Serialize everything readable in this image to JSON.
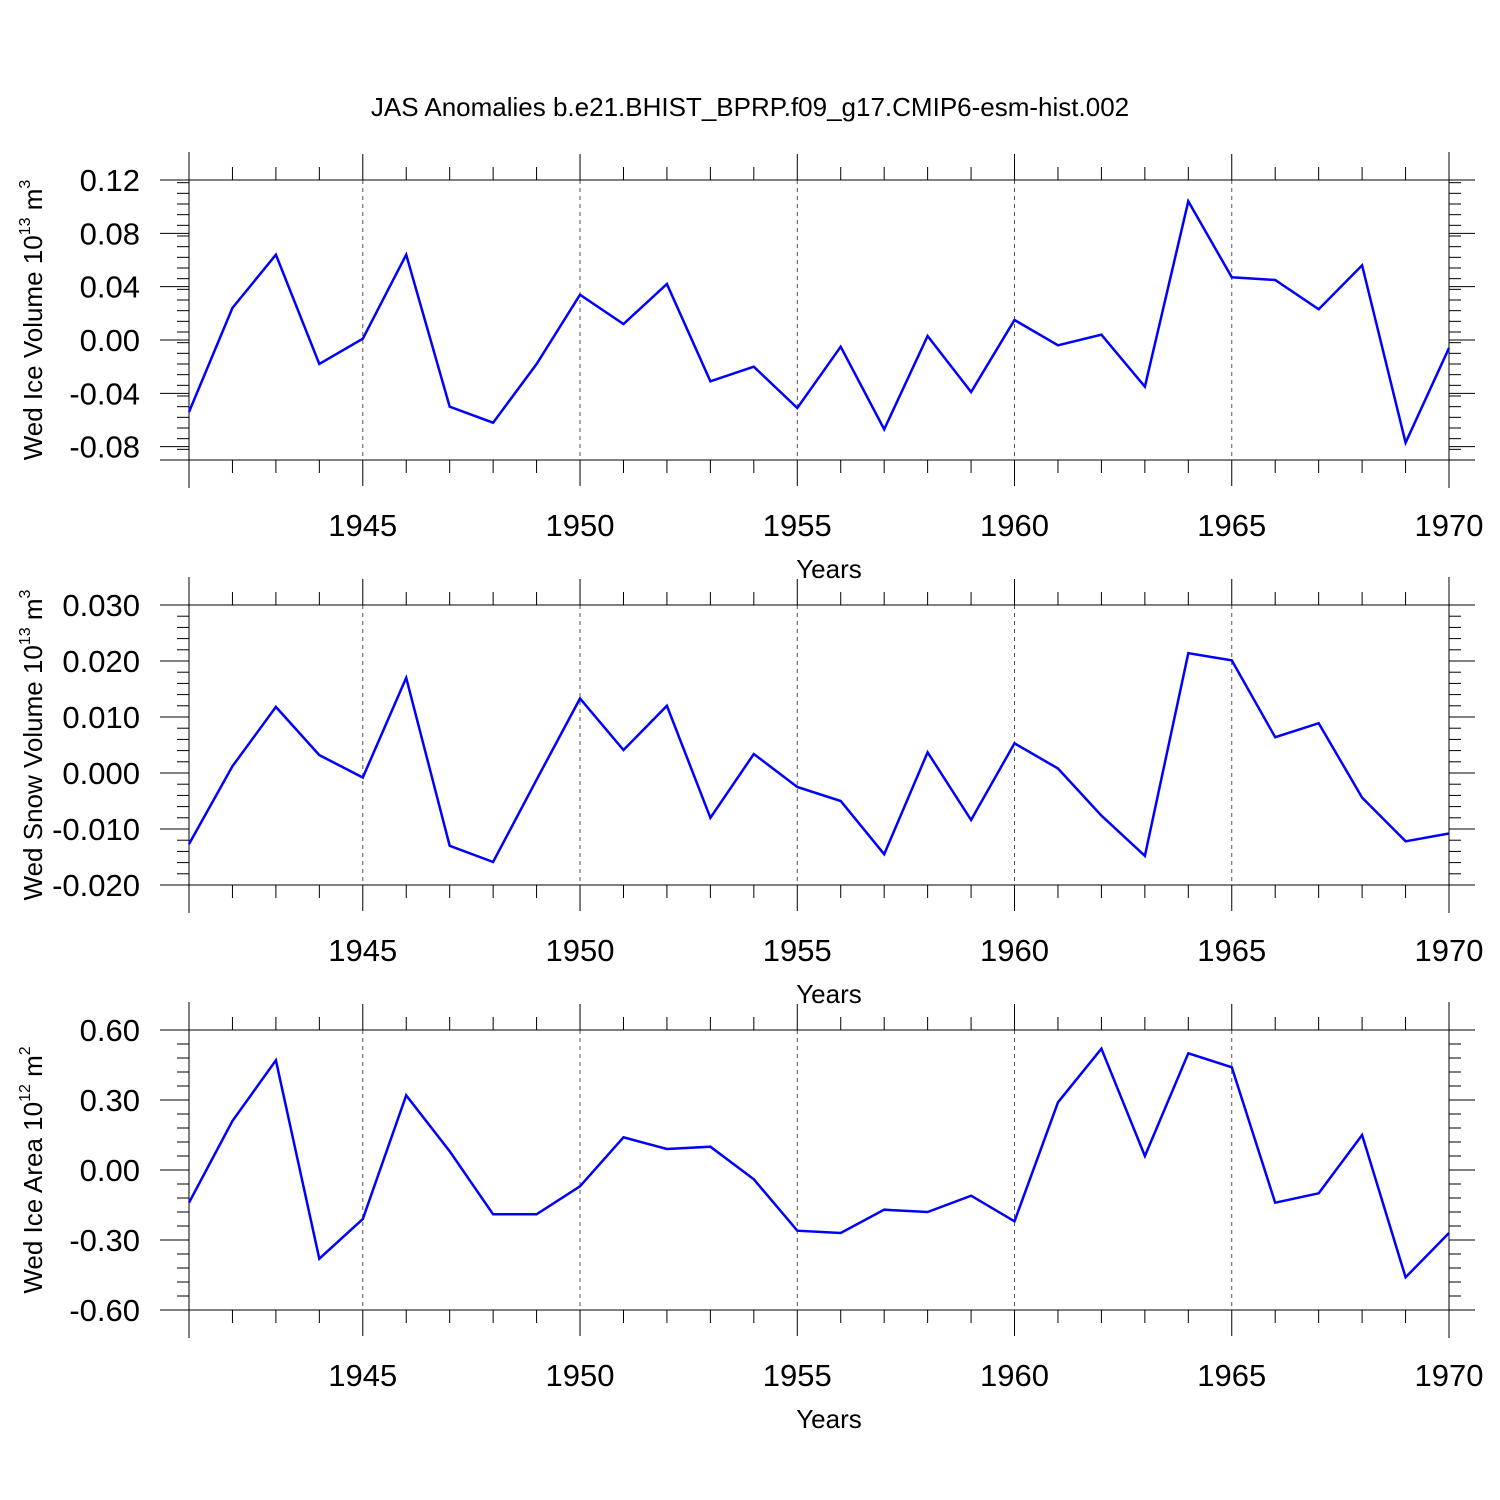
{
  "title": "JAS Anomalies b.e21.BHIST_BPRP.f09_g17.CMIP6-esm-hist.002",
  "line_color": "#0000ff",
  "chart_data": [
    {
      "type": "line",
      "series": [
        {
          "x": [
            1941,
            1942,
            1943,
            1944,
            1945,
            1946,
            1947,
            1948,
            1949,
            1950,
            1951,
            1952,
            1953,
            1954,
            1955,
            1956,
            1957,
            1958,
            1959,
            1960,
            1961,
            1962,
            1963,
            1964,
            1965,
            1966,
            1967,
            1968,
            1969,
            1970
          ],
          "values": [
            -0.054,
            0.024,
            0.064,
            -0.018,
            0.001,
            0.064,
            -0.05,
            -0.062,
            -0.018,
            0.034,
            0.012,
            0.042,
            -0.031,
            -0.02,
            -0.051,
            -0.005,
            -0.067,
            0.003,
            -0.039,
            0.015,
            -0.004,
            0.004,
            -0.035,
            0.104,
            0.047,
            0.045,
            0.023,
            0.056,
            -0.077,
            -0.006
          ]
        }
      ],
      "xlabel": "Years",
      "ylabel": {
        "main": "Wed Ice Volume 10",
        "sup1": "13",
        "mid": " m",
        "sup2": "3"
      },
      "xlim": [
        1941,
        1970
      ],
      "ylim": [
        -0.09,
        0.12
      ],
      "xticks": [
        1945,
        1950,
        1955,
        1960,
        1965,
        1970
      ],
      "yticks": [
        0.12,
        0.08,
        0.04,
        0.0,
        -0.04,
        -0.08
      ],
      "ytick_labels": [
        "0.12",
        "0.08",
        "0.04",
        "0.00",
        "-0.04",
        "-0.08"
      ],
      "yminor_step": 0.008,
      "grid": "dashed vertical lines at major x ticks"
    },
    {
      "type": "line",
      "series": [
        {
          "x": [
            1941,
            1942,
            1943,
            1944,
            1945,
            1946,
            1947,
            1948,
            1949,
            1950,
            1951,
            1952,
            1953,
            1954,
            1955,
            1956,
            1957,
            1958,
            1959,
            1960,
            1961,
            1962,
            1963,
            1964,
            1965,
            1966,
            1967,
            1968,
            1969,
            1970
          ],
          "values": [
            -0.0127,
            0.0012,
            0.0118,
            0.0032,
            -0.0008,
            0.017,
            -0.013,
            -0.0159,
            -0.0012,
            0.0133,
            0.0041,
            0.012,
            -0.008,
            0.0034,
            -0.0025,
            -0.005,
            -0.0145,
            0.0037,
            -0.0084,
            0.0053,
            0.0008,
            -0.0076,
            -0.0148,
            0.0214,
            0.0201,
            0.0064,
            0.0089,
            -0.0044,
            -0.0122,
            -0.0108
          ]
        }
      ],
      "xlabel": "Years",
      "ylabel": {
        "main": "Wed Snow Volume 10",
        "sup1": "13",
        "mid": " m",
        "sup2": "3"
      },
      "xlim": [
        1941,
        1970
      ],
      "ylim": [
        -0.02,
        0.03
      ],
      "xticks": [
        1945,
        1950,
        1955,
        1960,
        1965,
        1970
      ],
      "yticks": [
        0.03,
        0.02,
        0.01,
        0.0,
        -0.01,
        -0.02
      ],
      "ytick_labels": [
        "0.030",
        "0.020",
        "0.010",
        "0.000",
        "-0.010",
        "-0.020"
      ],
      "yminor_step": 0.002,
      "grid": "dashed vertical lines at major x ticks"
    },
    {
      "type": "line",
      "series": [
        {
          "x": [
            1941,
            1942,
            1943,
            1944,
            1945,
            1946,
            1947,
            1948,
            1949,
            1950,
            1951,
            1952,
            1953,
            1954,
            1955,
            1956,
            1957,
            1958,
            1959,
            1960,
            1961,
            1962,
            1963,
            1964,
            1965,
            1966,
            1967,
            1968,
            1969,
            1970
          ],
          "values": [
            -0.14,
            0.21,
            0.47,
            -0.38,
            -0.21,
            0.32,
            0.08,
            -0.19,
            -0.19,
            -0.07,
            0.14,
            0.09,
            0.1,
            -0.04,
            -0.26,
            -0.27,
            -0.17,
            -0.18,
            -0.11,
            -0.22,
            0.29,
            0.52,
            0.06,
            0.5,
            0.44,
            -0.14,
            -0.1,
            0.15,
            -0.46,
            -0.27
          ]
        }
      ],
      "xlabel": "Years",
      "ylabel": {
        "main": "Wed Ice Area 10",
        "sup1": "12",
        "mid": " m",
        "sup2": "2"
      },
      "xlim": [
        1941,
        1970
      ],
      "ylim": [
        -0.6,
        0.6
      ],
      "xticks": [
        1945,
        1950,
        1955,
        1960,
        1965,
        1970
      ],
      "yticks": [
        0.6,
        0.3,
        0.0,
        -0.3,
        -0.6
      ],
      "ytick_labels": [
        "0.60",
        "0.30",
        "0.00",
        "-0.30",
        "-0.60"
      ],
      "yminor_step": 0.06,
      "grid": "dashed vertical lines at major x ticks"
    }
  ]
}
